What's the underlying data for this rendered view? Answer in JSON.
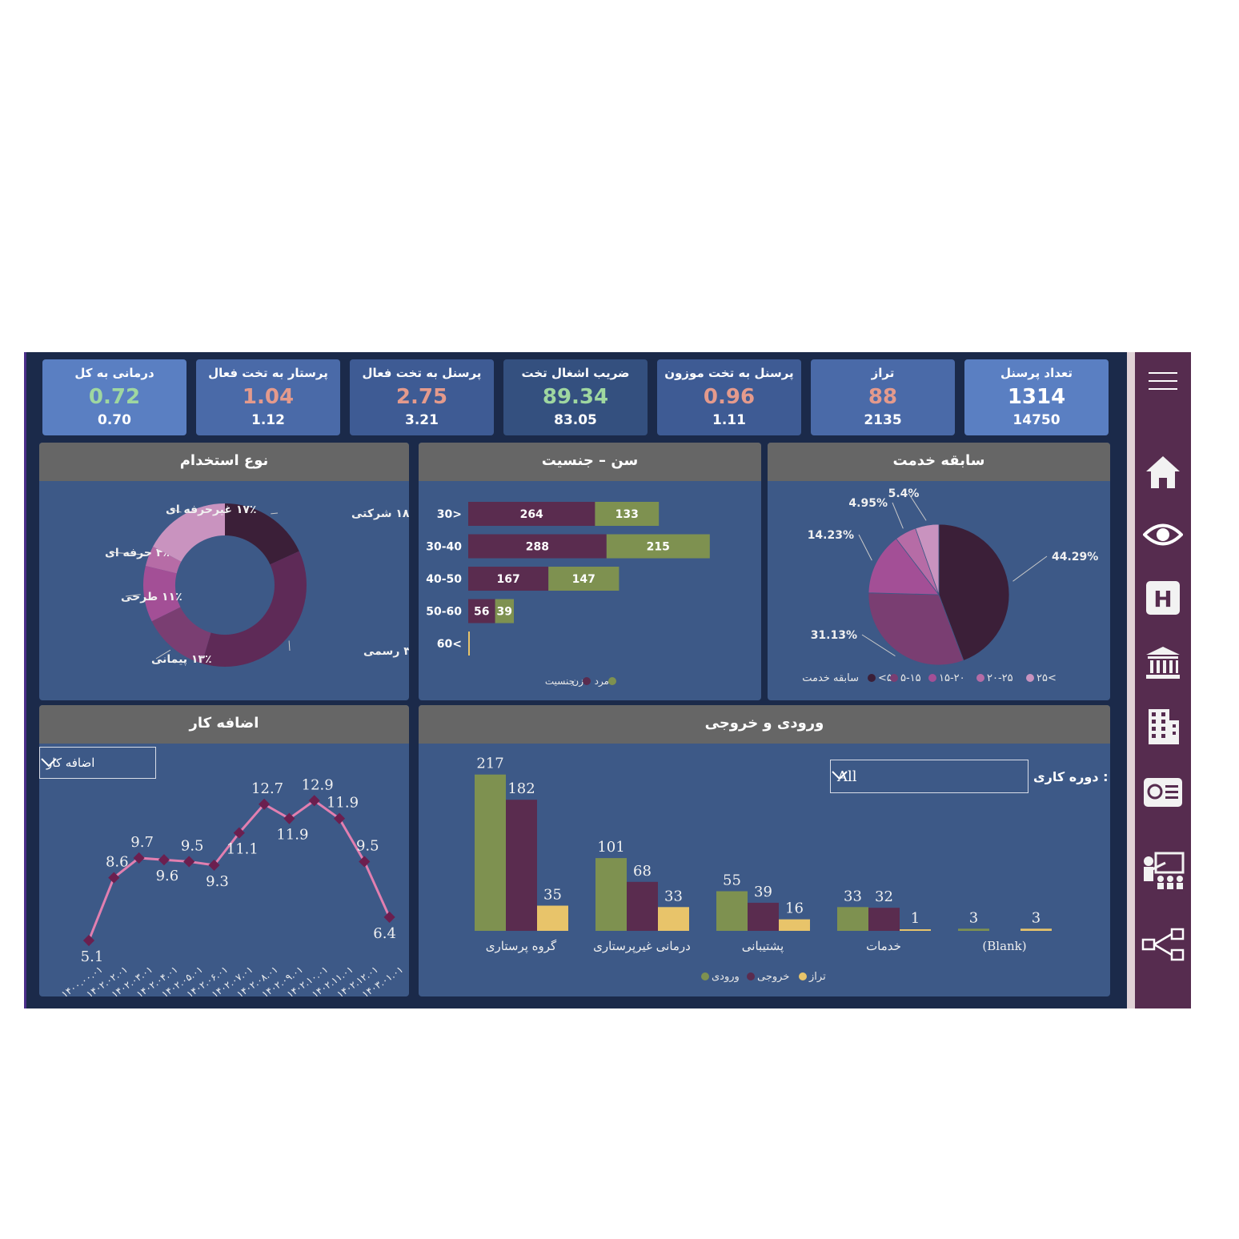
{
  "kpis": [
    {
      "title": "تعداد پرسنل",
      "value": "1314",
      "sub": "14750",
      "value_color": "#ffffff",
      "bg": "#5a7fc2"
    },
    {
      "title": "تراز",
      "value": "88",
      "sub": "2135",
      "value_color": "#e49a8c",
      "bg": "#4a6aa8"
    },
    {
      "title": "پرسنل به تخت موزون",
      "value": "0.96",
      "sub": "1.11",
      "value_color": "#e49a8c",
      "bg": "#3e5b94"
    },
    {
      "title": "ضریب اشغال تخت",
      "value": "89.34",
      "sub": "83.05",
      "value_color": "#9fd7a0",
      "bg": "#34507f"
    },
    {
      "title": "پرسنل به تخت فعال",
      "value": "2.75",
      "sub": "3.21",
      "value_color": "#e49a8c",
      "bg": "#3e5b94"
    },
    {
      "title": "پرستار به تخت فعال",
      "value": "1.04",
      "sub": "1.12",
      "value_color": "#e49a8c",
      "bg": "#4a6aa8"
    },
    {
      "title": "درمانی به کل",
      "value": "0.72",
      "sub": "0.70",
      "value_color": "#9fd7a0",
      "bg": "#5a7fc2"
    }
  ],
  "panels": {
    "service": "سابقه خدمت",
    "age_gender": "سن – جنسیت",
    "employment": "نوع استخدام",
    "in_out": "ورودی و خروجی",
    "overtime": "اضافه کار"
  },
  "in_out_filter": {
    "label": "دوره کاری :",
    "value": "All"
  },
  "overtime_filter": {
    "value": "اضافه کار"
  },
  "colors": {
    "green": "#7e9150",
    "maroon": "#5a2c4f",
    "yellow": "#e8c46a",
    "pink": "#e27fb0"
  },
  "chart_data": [
    {
      "type": "pie",
      "title": "سابقه خدمت",
      "slices": [
        {
          "label": "<۵",
          "value": 44.29,
          "label_text": "44.29%",
          "color": "#3b1f38"
        },
        {
          "label": "۵-۱۵",
          "value": 31.13,
          "label_text": "31.13%",
          "color": "#7a3e72"
        },
        {
          "label": "۱۵-۲۰",
          "value": 14.23,
          "label_text": "14.23%",
          "color": "#a34f96"
        },
        {
          "label": "۲۰-۲۵",
          "value": 4.95,
          "label_text": "4.95%",
          "color": "#b66ca6"
        },
        {
          "label": "۲۵<",
          "value": 5.4,
          "label_text": "5.4%",
          "color": "#c993bf"
        }
      ],
      "legend_title": "سابقه خدمت",
      "legend": [
        "<۵",
        "۵-۱۵",
        "۱۵-۲۰",
        "۲۰-۲۵",
        "۲۵<"
      ]
    },
    {
      "type": "bar",
      "title": "سن – جنسیت",
      "categories": [
        "30>",
        "30-40",
        "40-50",
        "50-60",
        "60<"
      ],
      "series": [
        {
          "name": "زن",
          "values": [
            264,
            288,
            167,
            56,
            0
          ],
          "color": "#5a2c4f"
        },
        {
          "name": "مرد",
          "values": [
            133,
            215,
            147,
            39,
            0
          ],
          "color": "#7e9150"
        }
      ],
      "legend_title": "جنسیت"
    },
    {
      "type": "pie",
      "title": "نوع استخدام",
      "slices": [
        {
          "label": "شرکتی",
          "value": 18,
          "label_text": "۱۸٪ شرکتی",
          "color": "#3b1f38"
        },
        {
          "label": "رسمی",
          "value": 36,
          "label_text": "۳۶٪ رسمی",
          "color": "#5e2a57"
        },
        {
          "label": "پیمانی",
          "value": 13,
          "label_text": "۱۳٪ پیمانی",
          "color": "#7a3e72"
        },
        {
          "label": "طرحی",
          "value": 11,
          "label_text": "۱۱٪ طرحی",
          "color": "#a34f96"
        },
        {
          "label": "حرفه ای",
          "value": 4,
          "label_text": "۴٪ حرفه ای",
          "color": "#b66ca6"
        },
        {
          "label": "غیرحرفه ای",
          "value": 17,
          "label_text": "۱۷٪ غیرحرفه ای",
          "color": "#c993bf"
        }
      ]
    },
    {
      "type": "bar",
      "title": "ورودی و خروجی",
      "categories": [
        "گروه پرستاری",
        "درمانی غیرپرستاری",
        "پشتیبانی",
        "خدمات",
        "(Blank)"
      ],
      "series": [
        {
          "name": "ورودی",
          "values": [
            217,
            101,
            55,
            33,
            3
          ],
          "color": "#7e9150"
        },
        {
          "name": "خروجی",
          "values": [
            182,
            68,
            39,
            32,
            null
          ],
          "color": "#5a2c4f"
        },
        {
          "name": "تراز",
          "values": [
            35,
            33,
            16,
            1,
            3
          ],
          "color": "#e8c46a"
        }
      ]
    },
    {
      "type": "line",
      "title": "اضافه کار",
      "x": [
        "۱۴۰۰.۰۰.۰۱",
        "۱۴۰۲.۰۲.۰۱",
        "۱۴۰۲.۰۳.۰۱",
        "۱۴۰۲.۰۴.۰۱",
        "۱۴۰۲.۰۵.۰۱",
        "۱۴۰۲.۰۶.۰۱",
        "۱۴۰۲.۰۷.۰۱",
        "۱۴۰۲.۰۸.۰۱",
        "۱۴۰۲.۰۹.۰۱",
        "۱۴۰۲.۱۰.۰۱",
        "۱۴۰۲.۱۱.۰۱",
        "۱۴۰۲.۱۲.۰۱",
        "۱۴۰۳.۰۱.۰۱"
      ],
      "series": [
        {
          "values": [
            5.1,
            8.6,
            9.7,
            9.6,
            9.5,
            9.3,
            11.1,
            12.7,
            11.9,
            12.9,
            11.9,
            9.5,
            6.4
          ],
          "color": "#e27fb0"
        }
      ]
    }
  ]
}
